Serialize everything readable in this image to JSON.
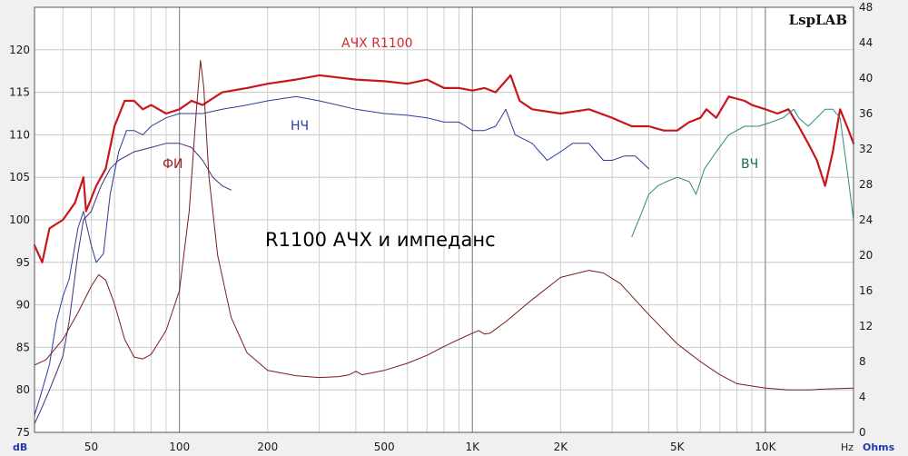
{
  "chart_data": {
    "type": "line",
    "brand": "LspLAB",
    "title": "R1100 АЧХ и импеданс",
    "x_unit": "Hz",
    "y_left_unit": "dB",
    "y_right_unit": "Ohms",
    "x_scale": "log",
    "xlim": [
      32,
      20000
    ],
    "ylim_left": [
      75,
      125
    ],
    "ylim_right": [
      0,
      48
    ],
    "grid": true,
    "x_ticks": [
      {
        "value": 50,
        "label": "50"
      },
      {
        "value": 100,
        "label": "100"
      },
      {
        "value": 200,
        "label": "200"
      },
      {
        "value": 500,
        "label": "500"
      },
      {
        "value": 1000,
        "label": "1K"
      },
      {
        "value": 2000,
        "label": "2K"
      },
      {
        "value": 5000,
        "label": "5K"
      },
      {
        "value": 10000,
        "label": "10K"
      }
    ],
    "y_left_ticks": [
      75,
      80,
      85,
      90,
      95,
      100,
      105,
      110,
      115,
      120
    ],
    "y_right_ticks": [
      0,
      4,
      8,
      12,
      16,
      20,
      24,
      28,
      32,
      36,
      40,
      44,
      48
    ],
    "x_major_grid": [
      100,
      1000,
      10000
    ],
    "series": [
      {
        "name": "АЧХ R1100",
        "axis": "left",
        "color": "#c8161d",
        "width": 2.2,
        "points": [
          [
            32,
            97
          ],
          [
            34,
            95
          ],
          [
            36,
            99
          ],
          [
            40,
            100
          ],
          [
            44,
            102
          ],
          [
            47,
            105
          ],
          [
            48,
            101
          ],
          [
            52,
            104
          ],
          [
            56,
            106
          ],
          [
            60,
            111
          ],
          [
            65,
            114
          ],
          [
            70,
            114
          ],
          [
            75,
            113
          ],
          [
            80,
            113.5
          ],
          [
            90,
            112.5
          ],
          [
            100,
            113
          ],
          [
            110,
            114
          ],
          [
            120,
            113.5
          ],
          [
            140,
            115
          ],
          [
            170,
            115.5
          ],
          [
            200,
            116
          ],
          [
            250,
            116.5
          ],
          [
            300,
            117
          ],
          [
            400,
            116.5
          ],
          [
            500,
            116.3
          ],
          [
            600,
            116
          ],
          [
            700,
            116.5
          ],
          [
            800,
            115.5
          ],
          [
            900,
            115.5
          ],
          [
            1000,
            115.2
          ],
          [
            1100,
            115.5
          ],
          [
            1200,
            115
          ],
          [
            1350,
            117
          ],
          [
            1450,
            114
          ],
          [
            1600,
            113
          ],
          [
            2000,
            112.5
          ],
          [
            2500,
            113
          ],
          [
            3000,
            112
          ],
          [
            3500,
            111
          ],
          [
            4000,
            111
          ],
          [
            4500,
            110.5
          ],
          [
            5000,
            110.5
          ],
          [
            5500,
            111.5
          ],
          [
            6000,
            112
          ],
          [
            6300,
            113
          ],
          [
            6800,
            112
          ],
          [
            7500,
            114.5
          ],
          [
            8500,
            114
          ],
          [
            9000,
            113.5
          ],
          [
            10000,
            113
          ],
          [
            11000,
            112.5
          ],
          [
            12000,
            113
          ],
          [
            13000,
            111
          ],
          [
            14000,
            109
          ],
          [
            15000,
            107
          ],
          [
            16000,
            104
          ],
          [
            17000,
            108
          ],
          [
            18000,
            113
          ],
          [
            19000,
            111
          ],
          [
            20000,
            109
          ]
        ]
      },
      {
        "name": "НЧ",
        "axis": "left",
        "color": "#2a3c9c",
        "width": 1,
        "points": [
          [
            32,
            77
          ],
          [
            34,
            80
          ],
          [
            36,
            83
          ],
          [
            38,
            88
          ],
          [
            40,
            91
          ],
          [
            42,
            93
          ],
          [
            45,
            99
          ],
          [
            47,
            101
          ],
          [
            50,
            97
          ],
          [
            52,
            95
          ],
          [
            55,
            96
          ],
          [
            58,
            103
          ],
          [
            62,
            108
          ],
          [
            66,
            110.5
          ],
          [
            70,
            110.5
          ],
          [
            75,
            110
          ],
          [
            80,
            111
          ],
          [
            90,
            112
          ],
          [
            100,
            112.5
          ],
          [
            120,
            112.5
          ],
          [
            140,
            113
          ],
          [
            170,
            113.5
          ],
          [
            200,
            114
          ],
          [
            250,
            114.5
          ],
          [
            300,
            114
          ],
          [
            400,
            113
          ],
          [
            500,
            112.5
          ],
          [
            600,
            112.3
          ],
          [
            700,
            112
          ],
          [
            800,
            111.5
          ],
          [
            900,
            111.5
          ],
          [
            1000,
            110.5
          ],
          [
            1100,
            110.5
          ],
          [
            1200,
            111
          ],
          [
            1250,
            112
          ],
          [
            1300,
            113
          ],
          [
            1400,
            110
          ],
          [
            1600,
            109
          ],
          [
            1800,
            107
          ],
          [
            2000,
            108
          ],
          [
            2200,
            109
          ],
          [
            2500,
            109
          ],
          [
            2800,
            107
          ],
          [
            3000,
            107
          ],
          [
            3300,
            107.5
          ],
          [
            3600,
            107.5
          ],
          [
            4000,
            106
          ]
        ]
      },
      {
        "name": "ФИ",
        "axis": "left",
        "color": "#4a2a7a",
        "width": 1,
        "points": [
          [
            32,
            76
          ],
          [
            34,
            78
          ],
          [
            36,
            80
          ],
          [
            38,
            82
          ],
          [
            40,
            84
          ],
          [
            42,
            88
          ],
          [
            45,
            96
          ],
          [
            47,
            100
          ],
          [
            50,
            101
          ],
          [
            54,
            104
          ],
          [
            58,
            106
          ],
          [
            62,
            107
          ],
          [
            70,
            108
          ],
          [
            80,
            108.5
          ],
          [
            90,
            109
          ],
          [
            100,
            109
          ],
          [
            110,
            108.5
          ],
          [
            120,
            107
          ],
          [
            130,
            105
          ],
          [
            140,
            104
          ],
          [
            150,
            103.5
          ]
        ]
      },
      {
        "name": "ВЧ",
        "axis": "left",
        "color": "#2b8a83",
        "width": 1,
        "points": [
          [
            3500,
            98
          ],
          [
            3800,
            101
          ],
          [
            4000,
            103
          ],
          [
            4300,
            104
          ],
          [
            4600,
            104.5
          ],
          [
            5000,
            105
          ],
          [
            5500,
            104.5
          ],
          [
            5800,
            103
          ],
          [
            6200,
            106
          ],
          [
            6800,
            108
          ],
          [
            7500,
            110
          ],
          [
            8500,
            111
          ],
          [
            9500,
            111
          ],
          [
            10500,
            111.5
          ],
          [
            11500,
            112
          ],
          [
            12500,
            113
          ],
          [
            13000,
            112
          ],
          [
            14000,
            111
          ],
          [
            15000,
            112
          ],
          [
            16000,
            113
          ],
          [
            17000,
            113
          ],
          [
            18000,
            112
          ],
          [
            19000,
            106
          ],
          [
            20000,
            100
          ]
        ]
      },
      {
        "name": "",
        "axis": "right",
        "color": "#7a1c1c",
        "width": 1,
        "points": [
          [
            32,
            7.6
          ],
          [
            35,
            8.2
          ],
          [
            40,
            10.5
          ],
          [
            45,
            13.5
          ],
          [
            50,
            16.5
          ],
          [
            53,
            17.8
          ],
          [
            56,
            17.2
          ],
          [
            60,
            14.5
          ],
          [
            65,
            10.5
          ],
          [
            70,
            8.5
          ],
          [
            75,
            8.3
          ],
          [
            80,
            8.8
          ],
          [
            90,
            11.5
          ],
          [
            100,
            16
          ],
          [
            108,
            25
          ],
          [
            114,
            36
          ],
          [
            118,
            42
          ],
          [
            121,
            39
          ],
          [
            126,
            29
          ],
          [
            135,
            20
          ],
          [
            150,
            13
          ],
          [
            170,
            9
          ],
          [
            200,
            7
          ],
          [
            250,
            6.4
          ],
          [
            300,
            6.2
          ],
          [
            350,
            6.3
          ],
          [
            380,
            6.5
          ],
          [
            400,
            6.9
          ],
          [
            420,
            6.5
          ],
          [
            500,
            7
          ],
          [
            600,
            7.8
          ],
          [
            700,
            8.7
          ],
          [
            800,
            9.7
          ],
          [
            900,
            10.5
          ],
          [
            1000,
            11.2
          ],
          [
            1050,
            11.5
          ],
          [
            1100,
            11.1
          ],
          [
            1150,
            11.2
          ],
          [
            1300,
            12.5
          ],
          [
            1600,
            15
          ],
          [
            2000,
            17.5
          ],
          [
            2500,
            18.3
          ],
          [
            2800,
            18
          ],
          [
            3200,
            16.8
          ],
          [
            4000,
            13.3
          ],
          [
            5000,
            10
          ],
          [
            6000,
            8
          ],
          [
            7000,
            6.5
          ],
          [
            8000,
            5.5
          ],
          [
            10000,
            5
          ],
          [
            12000,
            4.8
          ],
          [
            14000,
            4.8
          ],
          [
            16000,
            4.9
          ],
          [
            20000,
            5
          ]
        ]
      }
    ]
  },
  "labels": {
    "series_ach": "АЧХ R1100",
    "series_nch": "НЧ",
    "series_fi": "ФИ",
    "series_vch": "ВЧ"
  }
}
